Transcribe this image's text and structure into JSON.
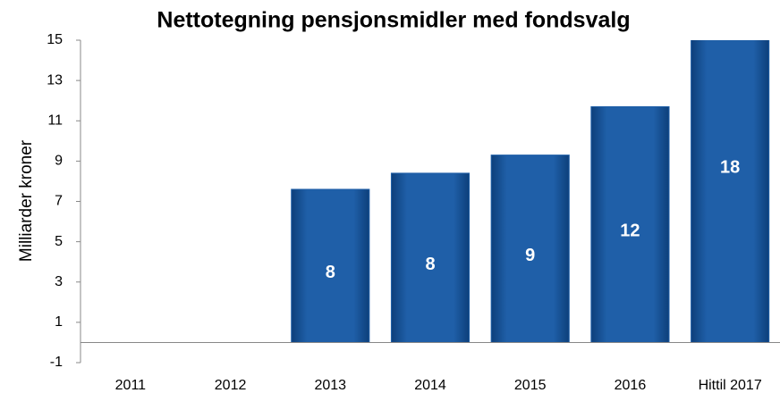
{
  "chart_data": {
    "type": "bar",
    "title": "Nettotegning pensjonsmidler med fondsvalg",
    "y_label": "Milliarder kroner",
    "categories": [
      "2011",
      "2012",
      "2013",
      "2014",
      "2015",
      "2016",
      "Hittil 2017"
    ],
    "values": [
      null,
      null,
      7.6,
      8.4,
      9.3,
      11.7,
      18
    ],
    "value_labels": [
      null,
      null,
      "8",
      "8",
      "9",
      "12",
      "18"
    ],
    "color": "#1f5fa8",
    "ylim": [
      -1,
      15
    ],
    "yticks": [
      -1,
      1,
      3,
      5,
      7,
      9,
      11,
      13,
      15
    ],
    "grid": false
  }
}
